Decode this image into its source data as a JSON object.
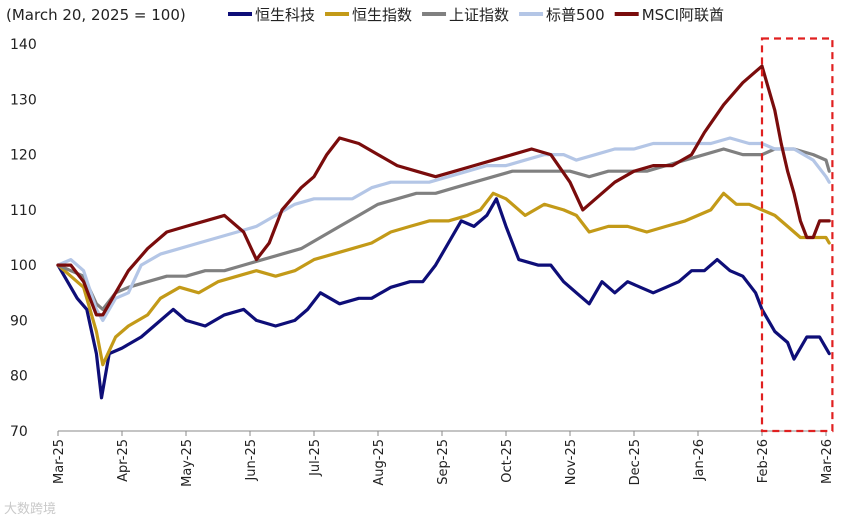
{
  "chart_data": {
    "type": "line",
    "title": "",
    "subtitle": "(March 20, 2025 = 100)",
    "xlabel": "",
    "ylabel": "",
    "ylim": [
      70,
      140
    ],
    "yticks": [
      70,
      80,
      90,
      100,
      110,
      120,
      130,
      140
    ],
    "grid": false,
    "legend_position": "top",
    "x_labels": [
      "Mar-25",
      "Apr-25",
      "May-25",
      "Jun-25",
      "Jul-25",
      "Aug-25",
      "Sep-25",
      "Oct-25",
      "Nov-25",
      "Dec-25",
      "Jan-26",
      "Feb-26",
      "Mar-26"
    ],
    "highlight_box": {
      "from_x": 11.0,
      "to_x": 12.1,
      "y_top": 141,
      "y_bottom": 70,
      "color": "#e02020"
    },
    "series": [
      {
        "name": "恒生科技",
        "color": "#0e0e78",
        "points": [
          [
            0,
            100
          ],
          [
            0.1,
            98
          ],
          [
            0.3,
            94
          ],
          [
            0.45,
            92
          ],
          [
            0.6,
            84
          ],
          [
            0.68,
            76
          ],
          [
            0.8,
            84
          ],
          [
            1.0,
            85
          ],
          [
            1.3,
            87
          ],
          [
            1.5,
            89
          ],
          [
            1.8,
            92
          ],
          [
            2.0,
            90
          ],
          [
            2.3,
            89
          ],
          [
            2.6,
            91
          ],
          [
            2.9,
            92
          ],
          [
            3.1,
            90
          ],
          [
            3.4,
            89
          ],
          [
            3.7,
            90
          ],
          [
            3.9,
            92
          ],
          [
            4.1,
            95
          ],
          [
            4.4,
            93
          ],
          [
            4.7,
            94
          ],
          [
            4.9,
            94
          ],
          [
            5.2,
            96
          ],
          [
            5.5,
            97
          ],
          [
            5.7,
            97
          ],
          [
            5.9,
            100
          ],
          [
            6.1,
            104
          ],
          [
            6.3,
            108
          ],
          [
            6.5,
            107
          ],
          [
            6.7,
            109
          ],
          [
            6.85,
            112
          ],
          [
            7.0,
            107
          ],
          [
            7.2,
            101
          ],
          [
            7.5,
            100
          ],
          [
            7.7,
            100
          ],
          [
            7.9,
            97
          ],
          [
            8.1,
            95
          ],
          [
            8.3,
            93
          ],
          [
            8.5,
            97
          ],
          [
            8.7,
            95
          ],
          [
            8.9,
            97
          ],
          [
            9.1,
            96
          ],
          [
            9.3,
            95
          ],
          [
            9.5,
            96
          ],
          [
            9.7,
            97
          ],
          [
            9.9,
            99
          ],
          [
            10.1,
            99
          ],
          [
            10.3,
            101
          ],
          [
            10.5,
            99
          ],
          [
            10.7,
            98
          ],
          [
            10.9,
            95
          ],
          [
            11.0,
            92
          ],
          [
            11.1,
            90
          ],
          [
            11.2,
            88
          ],
          [
            11.4,
            86
          ],
          [
            11.5,
            83
          ],
          [
            11.7,
            87
          ],
          [
            11.9,
            87
          ],
          [
            12.0,
            85
          ],
          [
            12.05,
            84
          ]
        ]
      },
      {
        "name": "恒生指数",
        "color": "#c39a18",
        "points": [
          [
            0,
            100
          ],
          [
            0.2,
            98
          ],
          [
            0.4,
            96
          ],
          [
            0.6,
            88
          ],
          [
            0.7,
            82
          ],
          [
            0.9,
            87
          ],
          [
            1.1,
            89
          ],
          [
            1.4,
            91
          ],
          [
            1.6,
            94
          ],
          [
            1.9,
            96
          ],
          [
            2.2,
            95
          ],
          [
            2.5,
            97
          ],
          [
            2.8,
            98
          ],
          [
            3.1,
            99
          ],
          [
            3.4,
            98
          ],
          [
            3.7,
            99
          ],
          [
            4.0,
            101
          ],
          [
            4.3,
            102
          ],
          [
            4.6,
            103
          ],
          [
            4.9,
            104
          ],
          [
            5.2,
            106
          ],
          [
            5.5,
            107
          ],
          [
            5.8,
            108
          ],
          [
            6.1,
            108
          ],
          [
            6.4,
            109
          ],
          [
            6.6,
            110
          ],
          [
            6.8,
            113
          ],
          [
            7.0,
            112
          ],
          [
            7.3,
            109
          ],
          [
            7.6,
            111
          ],
          [
            7.9,
            110
          ],
          [
            8.1,
            109
          ],
          [
            8.3,
            106
          ],
          [
            8.6,
            107
          ],
          [
            8.9,
            107
          ],
          [
            9.2,
            106
          ],
          [
            9.5,
            107
          ],
          [
            9.8,
            108
          ],
          [
            10.0,
            109
          ],
          [
            10.2,
            110
          ],
          [
            10.4,
            113
          ],
          [
            10.6,
            111
          ],
          [
            10.8,
            111
          ],
          [
            11.0,
            110
          ],
          [
            11.2,
            109
          ],
          [
            11.4,
            107
          ],
          [
            11.6,
            105
          ],
          [
            11.8,
            105
          ],
          [
            12.0,
            105
          ],
          [
            12.05,
            104
          ]
        ]
      },
      {
        "name": "上证指数",
        "color": "#808080",
        "points": [
          [
            0,
            100
          ],
          [
            0.2,
            99
          ],
          [
            0.4,
            98
          ],
          [
            0.6,
            93
          ],
          [
            0.7,
            92
          ],
          [
            0.9,
            95
          ],
          [
            1.1,
            96
          ],
          [
            1.4,
            97
          ],
          [
            1.7,
            98
          ],
          [
            2.0,
            98
          ],
          [
            2.3,
            99
          ],
          [
            2.6,
            99
          ],
          [
            2.9,
            100
          ],
          [
            3.2,
            101
          ],
          [
            3.5,
            102
          ],
          [
            3.8,
            103
          ],
          [
            4.1,
            105
          ],
          [
            4.4,
            107
          ],
          [
            4.7,
            109
          ],
          [
            5.0,
            111
          ],
          [
            5.3,
            112
          ],
          [
            5.6,
            113
          ],
          [
            5.9,
            113
          ],
          [
            6.2,
            114
          ],
          [
            6.5,
            115
          ],
          [
            6.8,
            116
          ],
          [
            7.1,
            117
          ],
          [
            7.4,
            117
          ],
          [
            7.7,
            117
          ],
          [
            8.0,
            117
          ],
          [
            8.3,
            116
          ],
          [
            8.6,
            117
          ],
          [
            8.9,
            117
          ],
          [
            9.2,
            117
          ],
          [
            9.5,
            118
          ],
          [
            9.8,
            119
          ],
          [
            10.1,
            120
          ],
          [
            10.4,
            121
          ],
          [
            10.7,
            120
          ],
          [
            11.0,
            120
          ],
          [
            11.2,
            121
          ],
          [
            11.5,
            121
          ],
          [
            11.8,
            120
          ],
          [
            12.0,
            119
          ],
          [
            12.05,
            117
          ]
        ]
      },
      {
        "name": "标普500",
        "color": "#b4c6e6",
        "points": [
          [
            0,
            100
          ],
          [
            0.2,
            101
          ],
          [
            0.4,
            99
          ],
          [
            0.6,
            92
          ],
          [
            0.7,
            90
          ],
          [
            0.9,
            94
          ],
          [
            1.1,
            95
          ],
          [
            1.3,
            100
          ],
          [
            1.6,
            102
          ],
          [
            1.9,
            103
          ],
          [
            2.2,
            104
          ],
          [
            2.5,
            105
          ],
          [
            2.8,
            106
          ],
          [
            3.1,
            107
          ],
          [
            3.4,
            109
          ],
          [
            3.7,
            111
          ],
          [
            4.0,
            112
          ],
          [
            4.3,
            112
          ],
          [
            4.6,
            112
          ],
          [
            4.9,
            114
          ],
          [
            5.2,
            115
          ],
          [
            5.5,
            115
          ],
          [
            5.8,
            115
          ],
          [
            6.1,
            116
          ],
          [
            6.4,
            117
          ],
          [
            6.7,
            118
          ],
          [
            7.0,
            118
          ],
          [
            7.3,
            119
          ],
          [
            7.6,
            120
          ],
          [
            7.9,
            120
          ],
          [
            8.1,
            119
          ],
          [
            8.4,
            120
          ],
          [
            8.7,
            121
          ],
          [
            9.0,
            121
          ],
          [
            9.3,
            122
          ],
          [
            9.6,
            122
          ],
          [
            9.9,
            122
          ],
          [
            10.2,
            122
          ],
          [
            10.5,
            123
          ],
          [
            10.8,
            122
          ],
          [
            11.0,
            122
          ],
          [
            11.2,
            121
          ],
          [
            11.5,
            121
          ],
          [
            11.8,
            119
          ],
          [
            12.0,
            116
          ],
          [
            12.05,
            115
          ]
        ]
      },
      {
        "name": "MSCI阿联酋",
        "color": "#7a0c0c",
        "points": [
          [
            0,
            100
          ],
          [
            0.2,
            100
          ],
          [
            0.4,
            97
          ],
          [
            0.6,
            91
          ],
          [
            0.7,
            91
          ],
          [
            0.9,
            95
          ],
          [
            1.1,
            99
          ],
          [
            1.4,
            103
          ],
          [
            1.7,
            106
          ],
          [
            2.0,
            107
          ],
          [
            2.3,
            108
          ],
          [
            2.6,
            109
          ],
          [
            2.9,
            106
          ],
          [
            3.1,
            101
          ],
          [
            3.3,
            104
          ],
          [
            3.5,
            110
          ],
          [
            3.8,
            114
          ],
          [
            4.0,
            116
          ],
          [
            4.2,
            120
          ],
          [
            4.4,
            123
          ],
          [
            4.7,
            122
          ],
          [
            5.0,
            120
          ],
          [
            5.3,
            118
          ],
          [
            5.6,
            117
          ],
          [
            5.9,
            116
          ],
          [
            6.2,
            117
          ],
          [
            6.5,
            118
          ],
          [
            6.8,
            119
          ],
          [
            7.1,
            120
          ],
          [
            7.4,
            121
          ],
          [
            7.7,
            120
          ],
          [
            8.0,
            115
          ],
          [
            8.2,
            110
          ],
          [
            8.4,
            112
          ],
          [
            8.7,
            115
          ],
          [
            9.0,
            117
          ],
          [
            9.3,
            118
          ],
          [
            9.6,
            118
          ],
          [
            9.9,
            120
          ],
          [
            10.1,
            124
          ],
          [
            10.4,
            129
          ],
          [
            10.7,
            133
          ],
          [
            10.9,
            135
          ],
          [
            11.0,
            136
          ],
          [
            11.1,
            132
          ],
          [
            11.2,
            128
          ],
          [
            11.3,
            122
          ],
          [
            11.4,
            117
          ],
          [
            11.5,
            113
          ],
          [
            11.6,
            108
          ],
          [
            11.7,
            105
          ],
          [
            11.8,
            105
          ],
          [
            11.9,
            108
          ],
          [
            12.0,
            108
          ],
          [
            12.05,
            108
          ]
        ]
      }
    ]
  },
  "watermark": "大数跨境"
}
